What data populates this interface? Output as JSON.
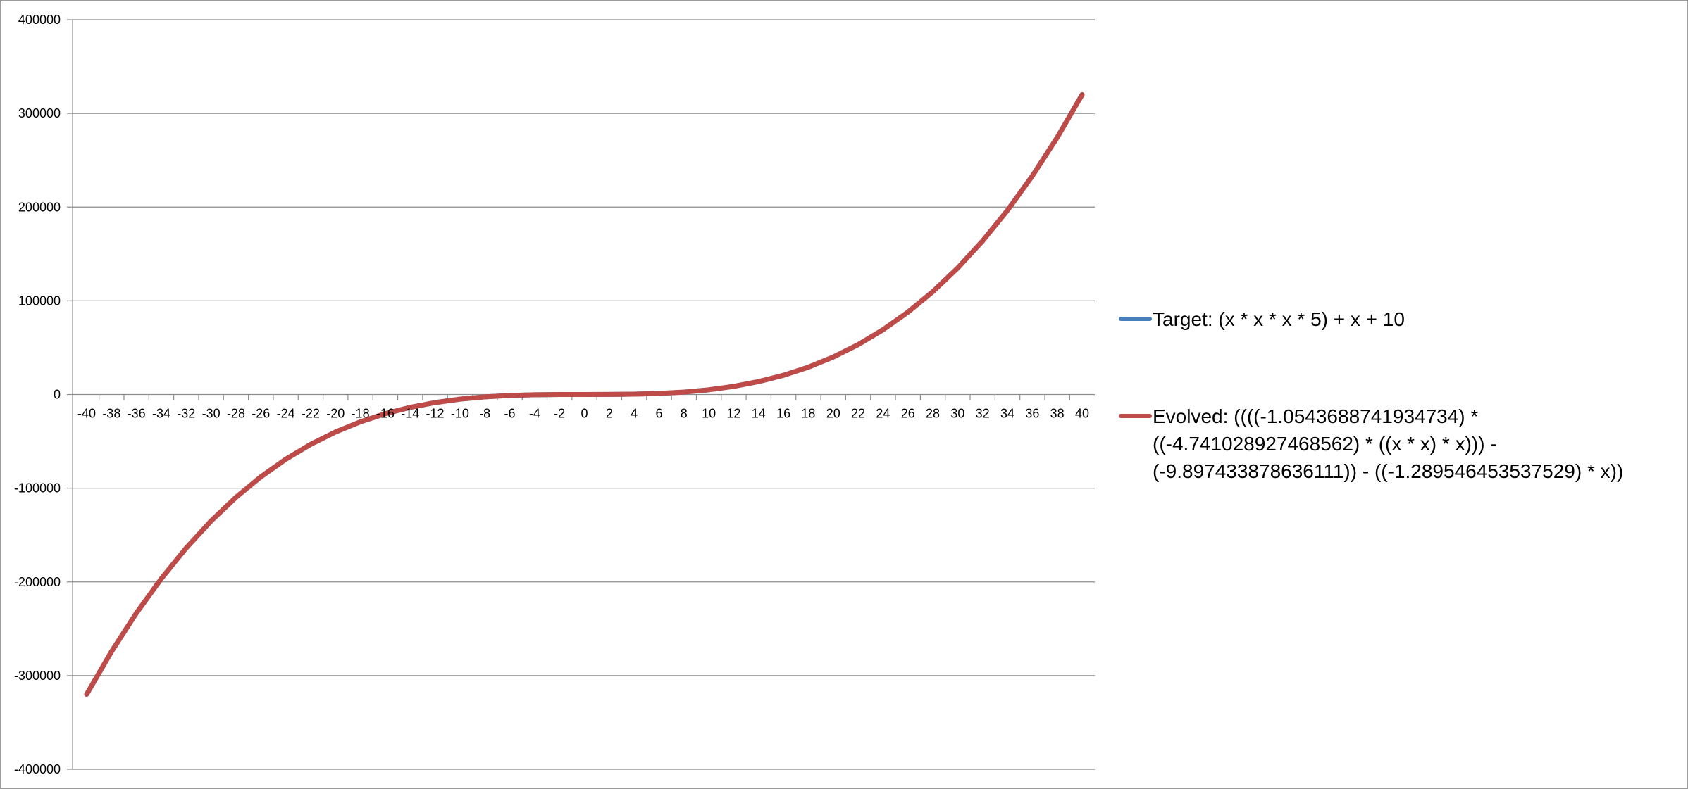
{
  "chart_data": {
    "type": "line",
    "title": "",
    "xlabel": "",
    "ylabel": "",
    "x": [
      -40,
      -38,
      -36,
      -34,
      -32,
      -30,
      -28,
      -26,
      -24,
      -22,
      -20,
      -18,
      -16,
      -14,
      -12,
      -10,
      -8,
      -6,
      -4,
      -2,
      0,
      2,
      4,
      6,
      8,
      10,
      12,
      14,
      16,
      18,
      20,
      22,
      24,
      26,
      28,
      30,
      32,
      34,
      36,
      38,
      40
    ],
    "x_tick_labels": [
      "-40",
      "-38",
      "-36",
      "-34",
      "-32",
      "-30",
      "-28",
      "-26",
      "-24",
      "-22",
      "-20",
      "-18",
      "-16",
      "-14",
      "-12",
      "-10",
      "-8",
      "-6",
      "-4",
      "-2",
      "0",
      "2",
      "4",
      "6",
      "8",
      "10",
      "12",
      "14",
      "16",
      "18",
      "20",
      "22",
      "24",
      "26",
      "28",
      "30",
      "32",
      "34",
      "36",
      "38",
      "40"
    ],
    "y_tick_labels": [
      "400000",
      "300000",
      "200000",
      "100000",
      "0",
      "-100000",
      "-200000",
      "-300000",
      "-400000"
    ],
    "ylim": [
      -400000,
      400000
    ],
    "grid": true,
    "legend_position": "right",
    "series": [
      {
        "name": "Target: (x * x * x * 5) + x + 10",
        "color": "#4a7ebb",
        "values": [
          -320030,
          -274378,
          -233306,
          -196554,
          -163862,
          -134990,
          -109738,
          -87906,
          -69134,
          -53252,
          -39990,
          -29168,
          -20486,
          -13734,
          -8642,
          -4990,
          -2558,
          -1076,
          -314,
          -32,
          10,
          52,
          334,
          1096,
          2578,
          5010,
          8662,
          13754,
          20506,
          29188,
          40010,
          53272,
          69154,
          87926,
          109758,
          135010,
          163882,
          196574,
          233326,
          274398,
          320050
        ]
      },
      {
        "name": "Evolved: ((((-1.0543688741934734) * ((-4.741028927468562) * ((x * x) * x))) - (-9.897433878636111)) - ((-1.289546453537529) * x))",
        "color": "#be4b48",
        "values": [
          -319914,
          -274278,
          -233220,
          -196480,
          -163800,
          -134938,
          -109696,
          -87871,
          -69106,
          -53230,
          -39974,
          -29155,
          -20477,
          -13728,
          -8637,
          -4988,
          -2557,
          -1076,
          -314,
          -32,
          10,
          52,
          334,
          1096,
          2577,
          5008,
          8659,
          13749,
          20498,
          29177,
          39994,
          53250,
          69125,
          87890,
          109714,
          134958,
          163820,
          196499,
          233238,
          274296,
          319932
        ]
      }
    ]
  }
}
